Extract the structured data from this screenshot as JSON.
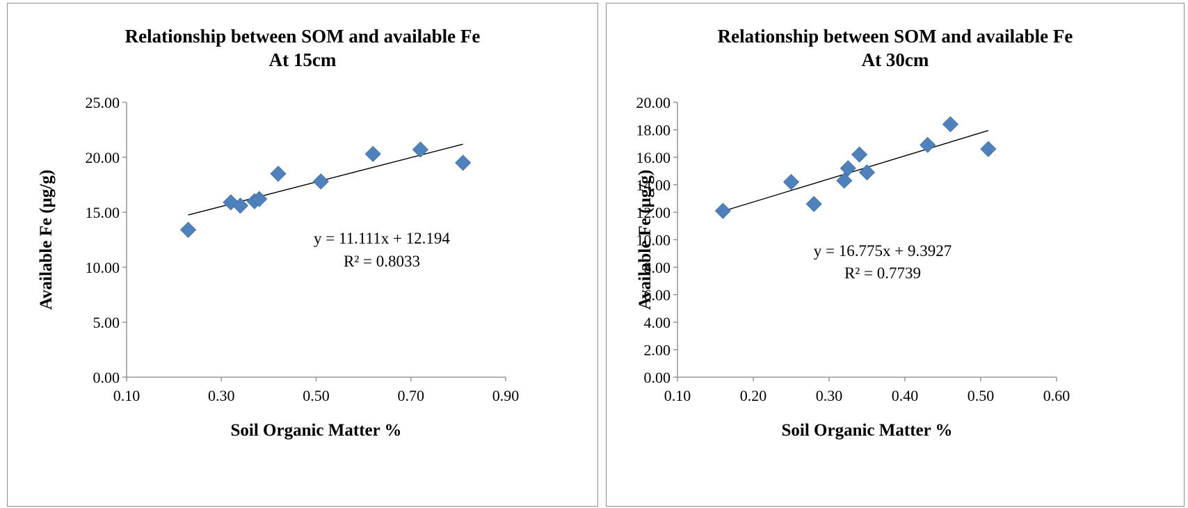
{
  "chart_data": [
    {
      "type": "scatter",
      "title": "Relationship between SOM and available Fe",
      "subtitle": "At 15cm",
      "xlabel": "Soil Organic Matter %",
      "ylabel": "Available Fe (µg/g)",
      "xlim": [
        0.1,
        0.9
      ],
      "ylim": [
        0.0,
        25.0
      ],
      "xticks": [
        "0.10",
        "0.30",
        "0.50",
        "0.70",
        "0.90"
      ],
      "yticks": [
        "0.00",
        "5.00",
        "10.00",
        "15.00",
        "20.00",
        "25.00"
      ],
      "grid": false,
      "marker_color": "#4f81bd",
      "points": [
        {
          "x": 0.23,
          "y": 13.4
        },
        {
          "x": 0.32,
          "y": 15.9
        },
        {
          "x": 0.34,
          "y": 15.6
        },
        {
          "x": 0.37,
          "y": 16.0
        },
        {
          "x": 0.38,
          "y": 16.2
        },
        {
          "x": 0.42,
          "y": 18.5
        },
        {
          "x": 0.51,
          "y": 17.8
        },
        {
          "x": 0.62,
          "y": 20.3
        },
        {
          "x": 0.72,
          "y": 20.7
        },
        {
          "x": 0.81,
          "y": 19.5
        }
      ],
      "trendline": {
        "slope": 11.111,
        "intercept": 12.194,
        "x_range": [
          0.23,
          0.81
        ]
      },
      "equation": "y = 11.111x + 12.194",
      "r_squared": "R² = 0.8033"
    },
    {
      "type": "scatter",
      "title": "Relationship between SOM and available Fe",
      "subtitle": "At 30cm",
      "xlabel": "Soil Organic Matter %",
      "ylabel": "Available Fe (µg/g)",
      "xlim": [
        0.1,
        0.6
      ],
      "ylim": [
        0.0,
        20.0
      ],
      "xticks": [
        "0.10",
        "0.20",
        "0.30",
        "0.40",
        "0.50",
        "0.60"
      ],
      "yticks": [
        "0.00",
        "2.00",
        "4.00",
        "6.00",
        "8.00",
        "10.00",
        "12.00",
        "14.00",
        "16.00",
        "18.00",
        "20.00"
      ],
      "grid": false,
      "marker_color": "#4f81bd",
      "points": [
        {
          "x": 0.16,
          "y": 12.1
        },
        {
          "x": 0.25,
          "y": 14.2
        },
        {
          "x": 0.28,
          "y": 12.6
        },
        {
          "x": 0.32,
          "y": 14.3
        },
        {
          "x": 0.325,
          "y": 15.2
        },
        {
          "x": 0.34,
          "y": 16.2
        },
        {
          "x": 0.35,
          "y": 14.9
        },
        {
          "x": 0.43,
          "y": 16.9
        },
        {
          "x": 0.46,
          "y": 18.4
        },
        {
          "x": 0.51,
          "y": 16.6
        }
      ],
      "trendline": {
        "slope": 16.775,
        "intercept": 9.3927,
        "x_range": [
          0.16,
          0.51
        ]
      },
      "equation": "y = 16.775x + 9.3927",
      "r_squared": "R² = 0.7739"
    }
  ]
}
